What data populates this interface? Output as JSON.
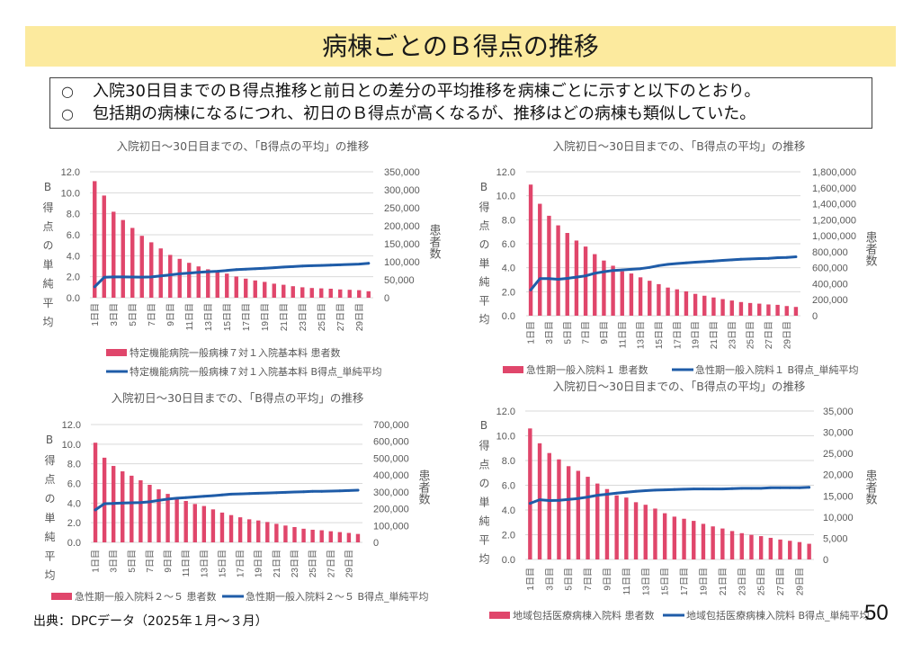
{
  "header": {
    "title": "病棟ごとのＢ得点の推移"
  },
  "summary": {
    "bullet": "○",
    "items": [
      "入院30日目までのＢ得点推移と前日との差分の平均推移を病棟ごとに示すと以下のとおり。",
      "包括期の病棟になるにつれ、初日のＢ得点が高くなるが、推移はどの病棟も類似していた。"
    ]
  },
  "colors": {
    "bar": "#E0466B",
    "line": "#1F5CA8",
    "title_band": "#FCEA9E"
  },
  "chart_data": [
    {
      "type": "bar",
      "title": "入院初日～30日目までの、「B得点の平均」の推移",
      "categories": [
        "1日目",
        "2日目",
        "3日目",
        "4日目",
        "5日目",
        "6日目",
        "7日目",
        "8日目",
        "9日目",
        "10日目",
        "11日目",
        "12日目",
        "13日目",
        "14日目",
        "15日目",
        "16日目",
        "17日目",
        "18日目",
        "19日目",
        "20日目",
        "21日目",
        "22日目",
        "23日目",
        "24日目",
        "25日目",
        "26日目",
        "27日目",
        "28日目",
        "29日目",
        "30日目"
      ],
      "x_tick_labels": [
        "1日目",
        "3日目",
        "5日目",
        "7日目",
        "9日目",
        "11日目",
        "13日目",
        "15日目",
        "17日目",
        "19日目",
        "21日目",
        "23日目",
        "25日目",
        "27日目",
        "29日目"
      ],
      "ylabel": "B得点の単純平均",
      "y2label": "患者数",
      "ylim": [
        0,
        12
      ],
      "ytick_labels": [
        "0.0",
        "2.0",
        "4.0",
        "6.0",
        "8.0",
        "10.0",
        "12.0"
      ],
      "y2lim": [
        0,
        350000
      ],
      "y2tick_labels": [
        "0",
        "50,000",
        "100,000",
        "150,000",
        "200,000",
        "250,000",
        "300,000",
        "350,000"
      ],
      "grid": true,
      "legend": "bottom",
      "series": [
        {
          "name": "特定機能病院一般病棟７対１入院基本料 患者数",
          "type": "bar",
          "axis": "right",
          "values": [
            324000,
            284000,
            239000,
            216000,
            194000,
            172000,
            154000,
            137000,
            119000,
            108000,
            97000,
            87000,
            79000,
            71000,
            67000,
            59000,
            53000,
            48000,
            44000,
            39000,
            36000,
            32000,
            29000,
            27000,
            26000,
            25000,
            23000,
            22000,
            21000,
            18000
          ]
        },
        {
          "name": "特定機能病院一般病棟７対１入院基本料 B得点_単純平均",
          "type": "line",
          "axis": "left",
          "values": [
            1.05,
            1.95,
            1.98,
            1.98,
            1.97,
            1.96,
            1.98,
            2.08,
            2.18,
            2.28,
            2.35,
            2.42,
            2.48,
            2.52,
            2.6,
            2.68,
            2.72,
            2.76,
            2.81,
            2.86,
            2.92,
            2.97,
            3.02,
            3.05,
            3.08,
            3.11,
            3.14,
            3.17,
            3.21,
            3.28
          ]
        }
      ]
    },
    {
      "type": "bar",
      "title": "入院初日～30日目までの、「B得点の平均」の推移",
      "categories": [
        "1日目",
        "2日目",
        "3日目",
        "4日目",
        "5日目",
        "6日目",
        "7日目",
        "8日目",
        "9日目",
        "10日目",
        "11日目",
        "12日目",
        "13日目",
        "14日目",
        "15日目",
        "16日目",
        "17日目",
        "18日目",
        "19日目",
        "20日目",
        "21日目",
        "22日目",
        "23日目",
        "24日目",
        "25日目",
        "26日目",
        "27日目",
        "28日目",
        "29日目",
        "30日目"
      ],
      "x_tick_labels": [
        "1日目",
        "3日目",
        "5日目",
        "7日目",
        "9日目",
        "11日目",
        "13日目",
        "15日目",
        "17日目",
        "19日目",
        "21日目",
        "23日目",
        "25日目",
        "27日目",
        "29日目"
      ],
      "ylabel": "B得点の単純平均",
      "y2label": "患者数",
      "ylim": [
        0,
        12
      ],
      "ytick_labels": [
        "0.0",
        "2.0",
        "4.0",
        "6.0",
        "8.0",
        "10.0",
        "12.0"
      ],
      "y2lim": [
        0,
        1800000
      ],
      "y2tick_labels": [
        "0",
        "200,000",
        "400,000",
        "600,000",
        "800,000",
        "1,000,000",
        "1,200,000",
        "1,400,000",
        "1,600,000",
        "1,800,000"
      ],
      "grid": true,
      "legend": "bottom",
      "series": [
        {
          "name": "急性期一般入院料１ 患者数",
          "type": "bar",
          "axis": "right",
          "values": [
            1640000,
            1400000,
            1250000,
            1130000,
            1035000,
            940000,
            865000,
            770000,
            690000,
            625000,
            555000,
            528000,
            480000,
            437000,
            395000,
            352000,
            330000,
            305000,
            273000,
            250000,
            228000,
            208000,
            190000,
            171000,
            159000,
            151000,
            141000,
            136000,
            121000,
            110000
          ]
        },
        {
          "name": "急性期一般入院料１ B得点_単純平均",
          "type": "line",
          "axis": "left",
          "values": [
            2.15,
            3.09,
            3.09,
            3.04,
            3.11,
            3.22,
            3.32,
            3.54,
            3.67,
            3.77,
            3.82,
            3.87,
            3.92,
            4.03,
            4.18,
            4.28,
            4.35,
            4.41,
            4.46,
            4.51,
            4.56,
            4.61,
            4.66,
            4.71,
            4.73,
            4.76,
            4.78,
            4.84,
            4.86,
            4.91
          ]
        }
      ]
    },
    {
      "type": "bar",
      "title": "入院初日～30日目までの、「B得点の平均」の推移",
      "categories": [
        "1日目",
        "2日目",
        "3日目",
        "4日目",
        "5日目",
        "6日目",
        "7日目",
        "8日目",
        "9日目",
        "10日目",
        "11日目",
        "12日目",
        "13日目",
        "14日目",
        "15日目",
        "16日目",
        "17日目",
        "18日目",
        "19日目",
        "20日目",
        "21日目",
        "22日目",
        "23日目",
        "24日目",
        "25日目",
        "26日目",
        "27日目",
        "28日目",
        "29日目",
        "30日目"
      ],
      "x_tick_labels": [
        "1日目",
        "3日目",
        "5日目",
        "7日目",
        "9日目",
        "11日目",
        "13日目",
        "15日目",
        "17日目",
        "19日目",
        "21日目",
        "23日目",
        "25日目",
        "27日目",
        "29日目"
      ],
      "ylabel": "B得点の単純平均",
      "y2label": "患者数",
      "ylim": [
        0,
        12
      ],
      "ytick_labels": [
        "0.0",
        "2.0",
        "4.0",
        "6.0",
        "8.0",
        "10.0",
        "12.0"
      ],
      "y2lim": [
        0,
        700000
      ],
      "y2tick_labels": [
        "0",
        "100,000",
        "200,000",
        "300,000",
        "400,000",
        "500,000",
        "600,000",
        "700,000"
      ],
      "grid": true,
      "legend": "bottom",
      "series": [
        {
          "name": "急性期一般入院料２～５ 患者数",
          "type": "bar",
          "axis": "right",
          "values": [
            592000,
            503000,
            454000,
            422000,
            396000,
            369000,
            342000,
            315000,
            288000,
            263000,
            246000,
            228000,
            216000,
            196000,
            177000,
            162000,
            149000,
            137000,
            130000,
            121000,
            110000,
            100000,
            91000,
            81000,
            75000,
            72000,
            66000,
            61000,
            56000,
            50000
          ]
        },
        {
          "name": "急性期一般入院料２～５ B得点_単純平均",
          "type": "line",
          "axis": "left",
          "values": [
            3.31,
            3.94,
            3.97,
            4.0,
            4.03,
            4.06,
            4.13,
            4.28,
            4.41,
            4.5,
            4.56,
            4.63,
            4.69,
            4.75,
            4.84,
            4.91,
            4.94,
            4.97,
            5.0,
            5.03,
            5.06,
            5.09,
            5.13,
            5.16,
            5.19,
            5.19,
            5.22,
            5.25,
            5.28,
            5.31
          ]
        }
      ]
    },
    {
      "type": "bar",
      "title": "入院初日～30日目までの、「B得点の平均」の推移",
      "categories": [
        "1日目",
        "2日目",
        "3日目",
        "4日目",
        "5日目",
        "6日目",
        "7日目",
        "8日目",
        "9日目",
        "10日目",
        "11日目",
        "12日目",
        "13日目",
        "14日目",
        "15日目",
        "16日目",
        "17日目",
        "18日目",
        "19日目",
        "20日目",
        "21日目",
        "22日目",
        "23日目",
        "24日目",
        "25日目",
        "26日目",
        "27日目",
        "28日目",
        "29日目",
        "30日目"
      ],
      "x_tick_labels": [
        "1日目",
        "3日目",
        "5日目",
        "7日目",
        "9日目",
        "11日目",
        "13日目",
        "15日目",
        "17日目",
        "19日目",
        "21日目",
        "23日目",
        "25日目",
        "27日目",
        "29日目"
      ],
      "ylabel": "B得点の単純平均",
      "y2label": "患者数",
      "ylim": [
        0,
        12
      ],
      "ytick_labels": [
        "0.0",
        "2.0",
        "4.0",
        "6.0",
        "8.0",
        "10.0",
        "12.0"
      ],
      "y2lim": [
        0,
        35000
      ],
      "y2tick_labels": [
        "0",
        "5,000",
        "10,000",
        "15,000",
        "20,000",
        "25,000",
        "30,000",
        "35,000"
      ],
      "grid": true,
      "legend": "bottom",
      "series": [
        {
          "name": "地域包括医療病棟入院料 患者数",
          "type": "bar",
          "axis": "right",
          "values": [
            30900,
            27400,
            25100,
            23600,
            22000,
            20900,
            19500,
            17900,
            16600,
            15100,
            14600,
            13500,
            12900,
            12000,
            10900,
            10100,
            9600,
            9100,
            8400,
            7800,
            7300,
            6700,
            6200,
            5800,
            5500,
            5100,
            4700,
            4400,
            4100,
            3700
          ]
        },
        {
          "name": "地域包括医療病棟入院料 B得点_単純平均",
          "type": "line",
          "axis": "left",
          "values": [
            4.54,
            4.83,
            4.76,
            4.78,
            4.85,
            4.93,
            5.05,
            5.19,
            5.27,
            5.36,
            5.44,
            5.51,
            5.56,
            5.61,
            5.63,
            5.66,
            5.68,
            5.7,
            5.7,
            5.7,
            5.7,
            5.73,
            5.75,
            5.75,
            5.75,
            5.8,
            5.8,
            5.8,
            5.8,
            5.83
          ]
        }
      ]
    }
  ],
  "footer": {
    "source": "出典：DPCデータ（2025年１月～３月）"
  },
  "page_number": "50"
}
